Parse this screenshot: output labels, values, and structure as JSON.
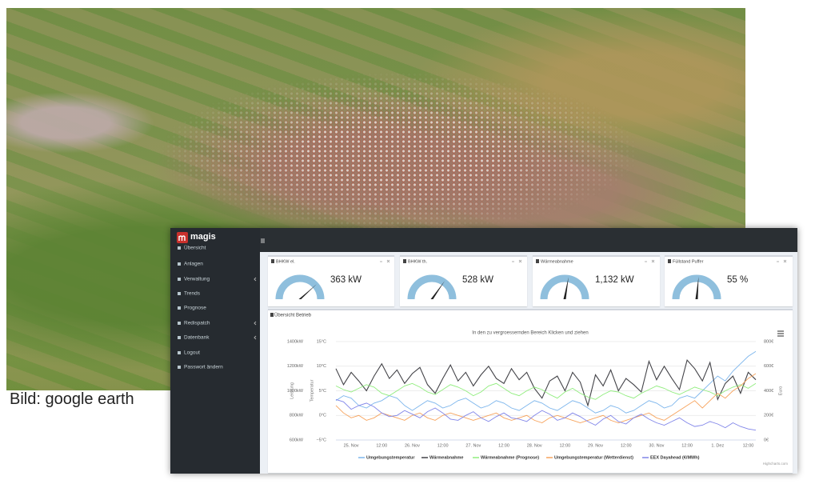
{
  "image_caption": "Bild: google earth",
  "sidebar": {
    "logo": "magis",
    "menu": [
      "Übersicht",
      "Anlagen",
      "Verwaltung",
      "Trends",
      "Prognose",
      "Redispatch",
      "Datenbank",
      "Logout",
      "Passwort ändern"
    ]
  },
  "gauges": [
    {
      "title": "BHKW el.",
      "value": "363 kW"
    },
    {
      "title": "BHKW th.",
      "value": "528 kW"
    },
    {
      "title": "Wärmeabnahme",
      "value": "1,132 kW"
    },
    {
      "title": "Füllstand Puffer",
      "value": "55 %"
    }
  ],
  "panel_title": "Übersicht Betrieb",
  "chart_data": {
    "type": "line",
    "subtitle": "In den zu vergroessernden Bereich Klicken und ziehen",
    "credits": "Highcharts.com",
    "categories": [
      null,
      null,
      "25. Nov",
      null,
      null,
      null,
      "12:00",
      null,
      null,
      null,
      "26. Nov",
      null,
      null,
      null,
      "12:00",
      null,
      null,
      null,
      "27. Nov",
      null,
      null,
      null,
      "12:00",
      null,
      null,
      null,
      "28. Nov",
      null,
      null,
      null,
      "12:00",
      null,
      null,
      null,
      "29. Nov",
      null,
      null,
      null,
      "12:00",
      null,
      null,
      null,
      "30. Nov",
      null,
      null,
      null,
      "12:00",
      null,
      null,
      null,
      "1. Dez",
      null,
      null,
      null,
      "12:00",
      null
    ],
    "ylabel": "Leistung",
    "ylim": [
      600,
      1400
    ],
    "yticks": [
      {
        "value": 600,
        "label": "600kW"
      },
      {
        "value": 800,
        "label": "800kW"
      },
      {
        "value": 1000,
        "label": "1000kW"
      },
      {
        "value": 1200,
        "label": "1200kW"
      },
      {
        "value": 1400,
        "label": "1400kW"
      }
    ],
    "y3label": "Temperatur",
    "y3lim": [
      -5,
      15
    ],
    "y3ticks": [
      {
        "value": -5,
        "label": "−5°C"
      },
      {
        "value": 0,
        "label": "0°C"
      },
      {
        "value": 5,
        "label": "5°C"
      },
      {
        "value": 10,
        "label": "10°C"
      },
      {
        "value": 15,
        "label": "15°C"
      }
    ],
    "y2label": "Euro",
    "y2lim": [
      0,
      800
    ],
    "y2ticks": [
      {
        "value": 0,
        "label": "0€"
      },
      {
        "value": 200,
        "label": "200€"
      },
      {
        "value": 400,
        "label": "400€"
      },
      {
        "value": 600,
        "label": "600€"
      },
      {
        "value": 800,
        "label": "800€"
      }
    ],
    "grid": true,
    "legend": "bottom",
    "series": [
      {
        "name": "Umgebungstemperatur",
        "color": "#7cb5ec",
        "axis": "y3",
        "values": [
          3,
          4,
          3.5,
          2,
          1.5,
          2.5,
          3,
          4,
          3.5,
          2,
          1,
          2,
          3,
          2.5,
          1.5,
          2,
          3,
          3.5,
          2.5,
          1.5,
          2,
          3,
          2.5,
          1.5,
          1,
          2,
          3,
          2.5,
          1.5,
          1,
          2,
          3,
          2.5,
          1.5,
          0.5,
          1,
          2,
          1.5,
          0.5,
          1,
          2,
          3,
          2.5,
          1.5,
          2,
          3.5,
          4,
          3.5,
          5,
          6.5,
          8,
          7,
          9,
          10.5,
          12,
          13
        ]
      },
      {
        "name": "Wärmeabnahme",
        "color": "#434348",
        "values": [
          1180,
          1050,
          1150,
          1080,
          1000,
          1120,
          1220,
          1100,
          1170,
          1060,
          1140,
          1190,
          1050,
          980,
          1100,
          1210,
          1080,
          1150,
          1040,
          1130,
          1200,
          1100,
          1060,
          1180,
          1090,
          1150,
          1020,
          940,
          1080,
          1120,
          1000,
          1150,
          1070,
          880,
          1130,
          1040,
          1170,
          1000,
          1100,
          1050,
          990,
          1240,
          1090,
          1200,
          1100,
          1010,
          1250,
          1180,
          1080,
          1230,
          930,
          1060,
          1120,
          980,
          1150,
          1090
        ]
      },
      {
        "name": "Wärmeabnahme (Prognose)",
        "color": "#90ed7d",
        "values": [
          1040,
          1010,
          990,
          1020,
          1050,
          1030,
          980,
          960,
          1000,
          1040,
          1060,
          1030,
          990,
          970,
          1010,
          1050,
          1030,
          1000,
          960,
          990,
          1040,
          1060,
          1020,
          980,
          960,
          1000,
          1030,
          1010,
          970,
          940,
          990,
          1020,
          980,
          950,
          930,
          970,
          1000,
          990,
          960,
          940,
          980,
          1010,
          1040,
          1020,
          990,
          970,
          1000,
          1030,
          1010,
          990,
          960,
          1000,
          1030,
          1050,
          1020,
          1060
        ]
      },
      {
        "name": "Umgebungstemperatur (Wetterdienst)",
        "color": "#f7a35c",
        "axis": "y3",
        "values": [
          2,
          0.5,
          -0.5,
          0,
          -1,
          -0.5,
          0.5,
          0,
          -0.5,
          -1,
          0,
          0.5,
          -0.5,
          -1,
          0,
          0.5,
          0,
          -0.5,
          -1,
          -0.5,
          0,
          0.5,
          -0.5,
          -1,
          -0.5,
          0,
          -1,
          -1.5,
          -0.5,
          0,
          -0.5,
          -1,
          -1.5,
          -1,
          -0.5,
          0,
          -1,
          -1.5,
          -1,
          -0.5,
          0,
          0.5,
          -0.5,
          -1,
          0,
          1,
          2,
          3,
          1.5,
          3,
          4.5,
          3.5,
          5,
          6,
          7.5,
          8.5
        ]
      },
      {
        "name": "EEX Dayahead (€/MWh)",
        "color": "#8085e9",
        "axis": "y2",
        "values": [
          330,
          310,
          250,
          280,
          300,
          270,
          220,
          190,
          200,
          240,
          210,
          180,
          230,
          260,
          220,
          170,
          160,
          200,
          230,
          180,
          150,
          190,
          220,
          180,
          170,
          150,
          200,
          240,
          210,
          160,
          180,
          220,
          190,
          150,
          120,
          170,
          200,
          150,
          130,
          180,
          210,
          170,
          140,
          120,
          150,
          180,
          140,
          110,
          120,
          150,
          130,
          100,
          140,
          110,
          90,
          80
        ]
      }
    ]
  }
}
